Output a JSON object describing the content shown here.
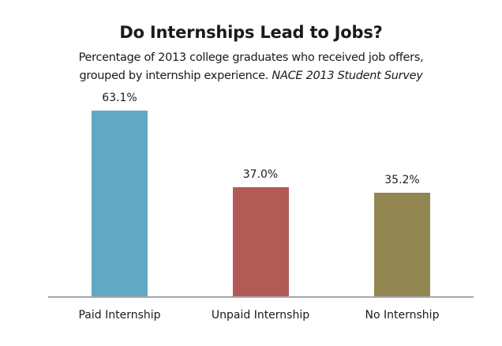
{
  "chart_data": {
    "type": "bar",
    "title": "Do Internships Lead to Jobs?",
    "subtitle": "Percentage of 2013 college graduates who received job offers, grouped by internship experience.",
    "source": "NACE 2013 Student Survey",
    "categories": [
      "Paid Internship",
      "Unpaid Internship",
      "No Internship"
    ],
    "values": [
      63.1,
      37.0,
      35.2
    ],
    "value_labels": [
      "63.1%",
      "37.0%",
      "35.2%"
    ],
    "colors": [
      "#62a8c4",
      "#b15a56",
      "#918652"
    ],
    "xlabel": "",
    "ylabel": "",
    "ylim": [
      0,
      70
    ],
    "grid": false,
    "legend": "none"
  },
  "header": {
    "title": "Do Internships Lead to Jobs?",
    "subtitle_line1": "Percentage of 2013 college graduates who received job offers,",
    "subtitle_line2": "grouped by internship experience. ",
    "source": "NACE 2013 Student Survey"
  }
}
